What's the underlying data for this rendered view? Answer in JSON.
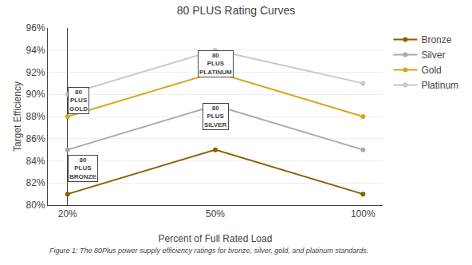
{
  "chart_data": {
    "type": "line",
    "title": "80 PLUS Rating Curves",
    "xlabel": "Percent of Full Rated Load",
    "ylabel": "Target Efficiency",
    "categories": [
      "20%",
      "50%",
      "100%"
    ],
    "series": [
      {
        "name": "Bronze",
        "color": "#8B5E00",
        "values": [
          81,
          85,
          81
        ]
      },
      {
        "name": "Silver",
        "color": "#AAAAAA",
        "values": [
          85,
          89,
          85
        ]
      },
      {
        "name": "Gold",
        "color": "#DAA520",
        "values": [
          88,
          92,
          88
        ]
      },
      {
        "name": "Platinum",
        "color": "#C8C8C8",
        "values": [
          90,
          94,
          91
        ]
      }
    ],
    "marker": "circle",
    "ylim": [
      80,
      96
    ],
    "yticks": [
      {
        "value": 80,
        "label": "80%"
      },
      {
        "value": 82,
        "label": "82%"
      },
      {
        "value": 84,
        "label": "84%"
      },
      {
        "value": 86,
        "label": "86%"
      },
      {
        "value": 88,
        "label": "88%"
      },
      {
        "value": 90,
        "label": "90%"
      },
      {
        "value": 92,
        "label": "92%"
      },
      {
        "value": 94,
        "label": "94%"
      },
      {
        "value": 96,
        "label": "96%"
      }
    ],
    "grid": true,
    "legend": "right",
    "annotations": [
      {
        "text": "80 PLUS BRONZE",
        "category": "20%",
        "y": 82.1
      },
      {
        "text": "80 PLUS GOLD",
        "category": "20%",
        "y": 88.2
      },
      {
        "text": "80 PLUS SILVER",
        "category": "50%",
        "y": 86.8
      },
      {
        "text": "80 PLUS PLATINUM",
        "category": "50%",
        "y": 91.5
      }
    ],
    "caption": "Figure 1: The 80Plus power supply efficiency ratings for bronze, silver, gold, and platinum standards."
  }
}
